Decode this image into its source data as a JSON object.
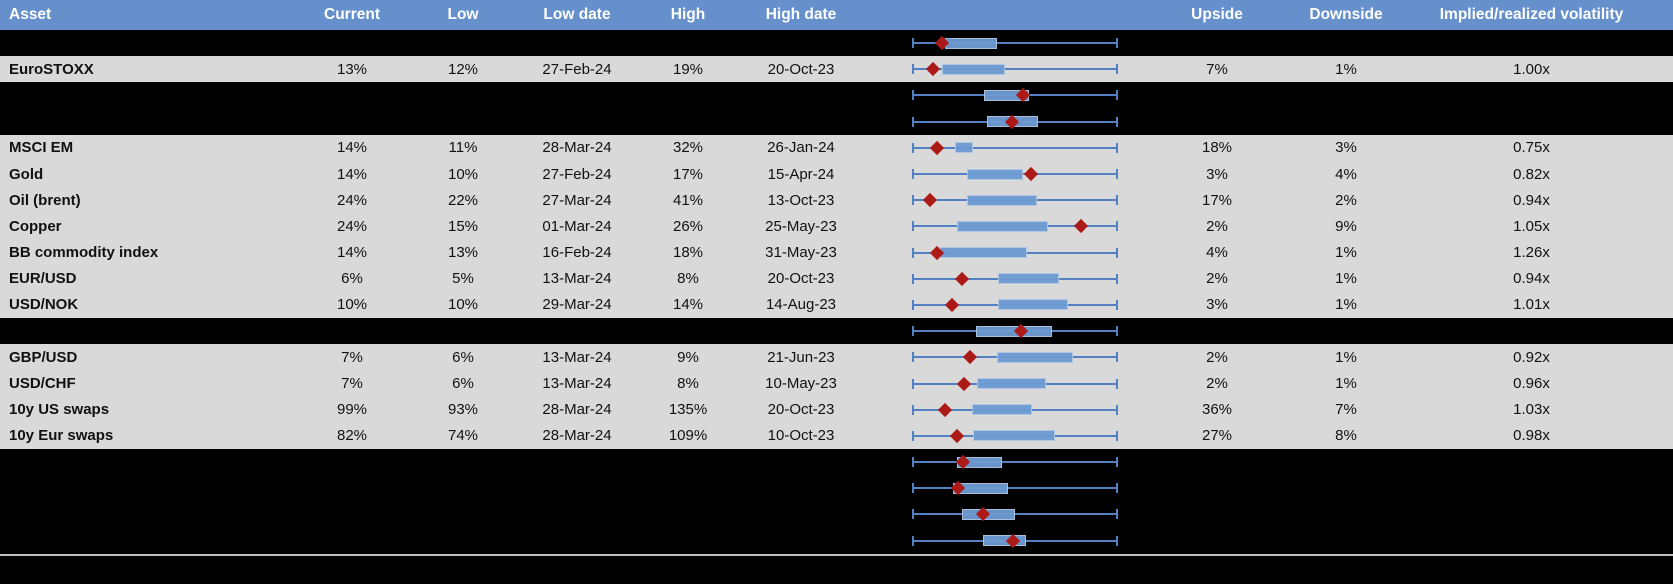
{
  "colors": {
    "page_bg": "#000000",
    "header_bg": "#6590CB",
    "row_bg": "#D9D9D9",
    "box_fill": "#6D9BD3",
    "whisker": "#5181C2",
    "marker": "#AC1A17",
    "separator": "#BFBFBF",
    "header_text": "#FFFFFF",
    "cell_text": "#111111"
  },
  "chart_data": {
    "type": "table",
    "note_layout": "table with embedded horizontal box-range plots; box and marker values are fractions 0-1 of each row's low-high whisker span",
    "columns": [
      "Asset",
      "Current",
      "Low",
      "Low date",
      "High",
      "High date",
      "",
      "Upside",
      "Downside",
      "Implied/realized volatility"
    ],
    "rows": [
      {
        "kind": "spacer",
        "box": [
          0.157,
          0.412
        ],
        "marker": 0.142
      },
      {
        "kind": "data",
        "asset": "EuroSTOXX",
        "current": "13%",
        "low": "12%",
        "low_date": "27-Feb-24",
        "high": "19%",
        "high_date": "20-Oct-23",
        "upside": "7%",
        "downside": "1%",
        "implied_realized": "1.00x",
        "box": [
          0.142,
          0.451
        ],
        "marker": 0.098
      },
      {
        "kind": "spacer",
        "box": [
          0.348,
          0.569
        ],
        "marker": 0.539
      },
      {
        "kind": "spacer",
        "box": [
          0.363,
          0.613
        ],
        "marker": 0.485
      },
      {
        "kind": "data",
        "asset": "MSCI EM",
        "current": "14%",
        "low": "11%",
        "low_date": "28-Mar-24",
        "high": "32%",
        "high_date": "26-Jan-24",
        "upside": "18%",
        "downside": "3%",
        "implied_realized": "0.75x",
        "box": [
          0.206,
          0.294
        ],
        "marker": 0.118
      },
      {
        "kind": "data",
        "asset": "Gold",
        "current": "14%",
        "low": "10%",
        "low_date": "27-Feb-24",
        "high": "17%",
        "high_date": "15-Apr-24",
        "upside": "3%",
        "downside": "4%",
        "implied_realized": "0.82x",
        "box": [
          0.265,
          0.539
        ],
        "marker": 0.578
      },
      {
        "kind": "data",
        "asset": "Oil (brent)",
        "current": "24%",
        "low": "22%",
        "low_date": "27-Mar-24",
        "high": "41%",
        "high_date": "13-Oct-23",
        "upside": "17%",
        "downside": "2%",
        "implied_realized": "0.94x",
        "box": [
          0.265,
          0.608
        ],
        "marker": 0.083
      },
      {
        "kind": "data",
        "asset": "Copper",
        "current": "24%",
        "low": "15%",
        "low_date": "01-Mar-24",
        "high": "26%",
        "high_date": "25-May-23",
        "upside": "2%",
        "downside": "9%",
        "implied_realized": "1.05x",
        "box": [
          0.216,
          0.662
        ],
        "marker": 0.824
      },
      {
        "kind": "data",
        "asset": "BB commodity index",
        "current": "14%",
        "low": "13%",
        "low_date": "16-Feb-24",
        "high": "18%",
        "high_date": "31-May-23",
        "upside": "4%",
        "downside": "1%",
        "implied_realized": "1.26x",
        "box": [
          0.132,
          0.559
        ],
        "marker": 0.118
      },
      {
        "kind": "data",
        "asset": "EUR/USD",
        "current": "6%",
        "low": "5%",
        "low_date": "13-Mar-24",
        "high": "8%",
        "high_date": "20-Oct-23",
        "upside": "2%",
        "downside": "1%",
        "implied_realized": "0.94x",
        "box": [
          0.417,
          0.716
        ],
        "marker": 0.24
      },
      {
        "kind": "data",
        "asset": "USD/NOK",
        "current": "10%",
        "low": "10%",
        "low_date": "29-Mar-24",
        "high": "14%",
        "high_date": "14-Aug-23",
        "upside": "3%",
        "downside": "1%",
        "implied_realized": "1.01x",
        "box": [
          0.417,
          0.76
        ],
        "marker": 0.191
      },
      {
        "kind": "spacer",
        "box": [
          0.309,
          0.681
        ],
        "marker": 0.529
      },
      {
        "kind": "data",
        "asset": "GBP/USD",
        "current": "7%",
        "low": "6%",
        "low_date": "13-Mar-24",
        "high": "9%",
        "high_date": "21-Jun-23",
        "upside": "2%",
        "downside": "1%",
        "implied_realized": "0.92x",
        "box": [
          0.412,
          0.784
        ],
        "marker": 0.279
      },
      {
        "kind": "data",
        "asset": "USD/CHF",
        "current": "7%",
        "low": "6%",
        "low_date": "13-Mar-24",
        "high": "8%",
        "high_date": "10-May-23",
        "upside": "2%",
        "downside": "1%",
        "implied_realized": "0.96x",
        "box": [
          0.314,
          0.652
        ],
        "marker": 0.25
      },
      {
        "kind": "data",
        "asset": "10y US swaps",
        "current": "99%",
        "low": "93%",
        "low_date": "28-Mar-24",
        "high": "135%",
        "high_date": "20-Oct-23",
        "upside": "36%",
        "downside": "7%",
        "implied_realized": "1.03x",
        "box": [
          0.289,
          0.583
        ],
        "marker": 0.157
      },
      {
        "kind": "data",
        "asset": "10y Eur swaps",
        "current": "82%",
        "low": "74%",
        "low_date": "28-Mar-24",
        "high": "109%",
        "high_date": "10-Oct-23",
        "upside": "27%",
        "downside": "8%",
        "implied_realized": "0.98x",
        "box": [
          0.294,
          0.696
        ],
        "marker": 0.216
      },
      {
        "kind": "spacer",
        "box": [
          0.216,
          0.436
        ],
        "marker": 0.245
      },
      {
        "kind": "spacer",
        "box": [
          0.196,
          0.466
        ],
        "marker": 0.221
      },
      {
        "kind": "spacer",
        "box": [
          0.24,
          0.5
        ],
        "marker": 0.343
      },
      {
        "kind": "spacer",
        "box": [
          0.343,
          0.554
        ],
        "marker": 0.49
      }
    ]
  }
}
